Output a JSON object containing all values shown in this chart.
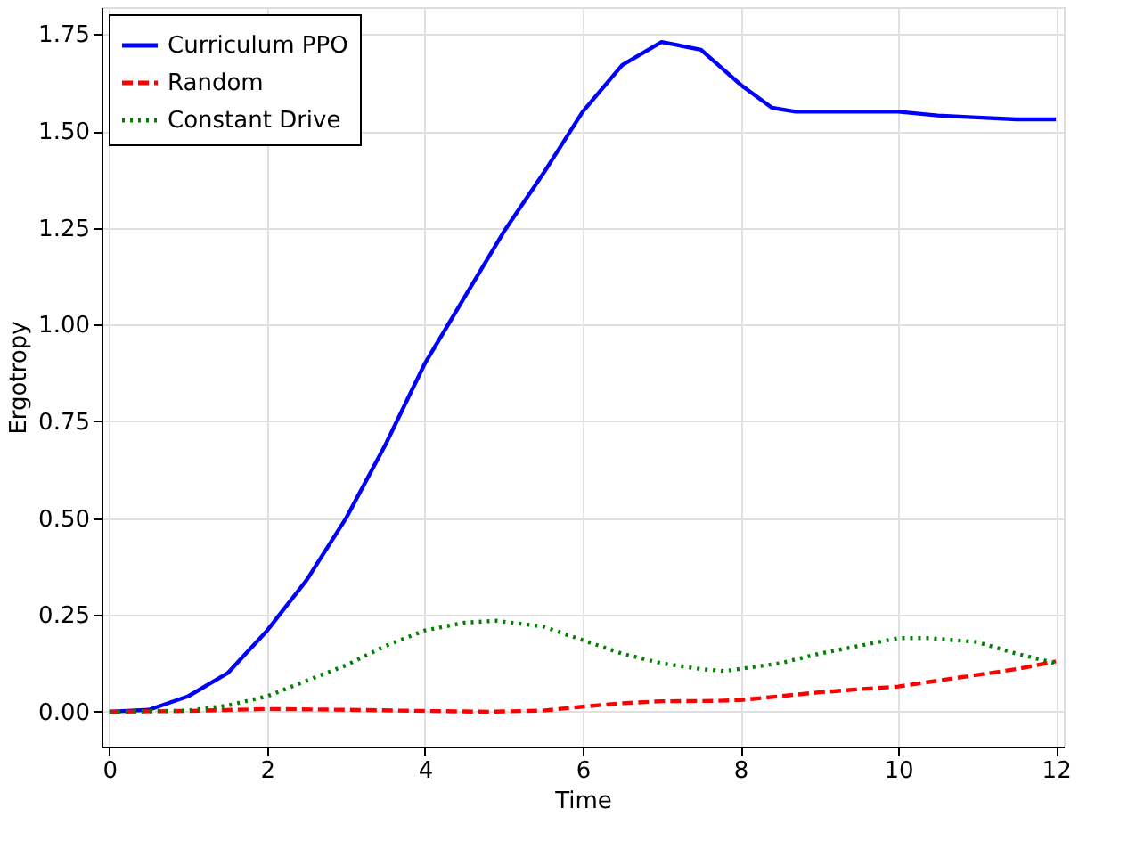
{
  "chart_data": {
    "type": "line",
    "xlabel": "Time",
    "ylabel": "Ergotropy",
    "xlim": [
      -0.1,
      12.1
    ],
    "ylim": [
      -0.09,
      1.82
    ],
    "xticks": [
      0,
      2,
      4,
      6,
      8,
      10,
      12
    ],
    "yticks": [
      {
        "value": 0,
        "label": "0.00"
      },
      {
        "value": 0.25,
        "label": "0.25"
      },
      {
        "value": 0.5,
        "label": "0.50"
      },
      {
        "value": 0.75,
        "label": "0.75"
      },
      {
        "value": 1,
        "label": "1.00"
      },
      {
        "value": 1.25,
        "label": "1.25"
      },
      {
        "value": 1.5,
        "label": "1.50"
      },
      {
        "value": 1.75,
        "label": "1.75"
      }
    ],
    "grid": true,
    "legend": "top left",
    "marker": "none",
    "series": [
      {
        "name": "Curriculum PPO",
        "color": "#0000ff",
        "line_style": "solid",
        "x": [
          0,
          0.5,
          1,
          1.5,
          2,
          2.5,
          3,
          3.5,
          4,
          4.5,
          5,
          5.5,
          6,
          6.5,
          7,
          7.5,
          8,
          8.4,
          8.7,
          9,
          10,
          10.5,
          11,
          11.5,
          12
        ],
        "values": [
          0,
          0.005,
          0.04,
          0.1,
          0.21,
          0.34,
          0.5,
          0.69,
          0.9,
          1.07,
          1.24,
          1.39,
          1.55,
          1.67,
          1.73,
          1.71,
          1.62,
          1.56,
          1.55,
          1.55,
          1.55,
          1.54,
          1.535,
          1.53,
          1.53
        ]
      },
      {
        "name": "Random",
        "color": "#ff0000",
        "line_style": "dashed",
        "x": [
          0,
          1,
          2,
          3,
          4,
          4.8,
          5.5,
          6,
          6.5,
          7,
          7.7,
          8,
          8.5,
          9,
          9.5,
          10,
          10.5,
          11,
          11.5,
          12
        ],
        "values": [
          0,
          0.002,
          0.007,
          0.005,
          0.002,
          0,
          0.003,
          0.013,
          0.022,
          0.027,
          0.028,
          0.03,
          0.04,
          0.05,
          0.058,
          0.065,
          0.08,
          0.095,
          0.11,
          0.13
        ]
      },
      {
        "name": "Constant Drive",
        "color": "#008000",
        "line_style": "dotted",
        "x": [
          0,
          1,
          1.5,
          2,
          2.5,
          3,
          3.5,
          4,
          4.5,
          4.9,
          5.5,
          6,
          6.5,
          7,
          7.5,
          7.8,
          8.5,
          9,
          9.5,
          10,
          10.4,
          11,
          11.5,
          12
        ],
        "values": [
          0,
          0.003,
          0.016,
          0.04,
          0.08,
          0.12,
          0.17,
          0.21,
          0.23,
          0.235,
          0.22,
          0.185,
          0.15,
          0.125,
          0.11,
          0.105,
          0.125,
          0.15,
          0.17,
          0.19,
          0.19,
          0.18,
          0.15,
          0.125
        ]
      }
    ]
  }
}
